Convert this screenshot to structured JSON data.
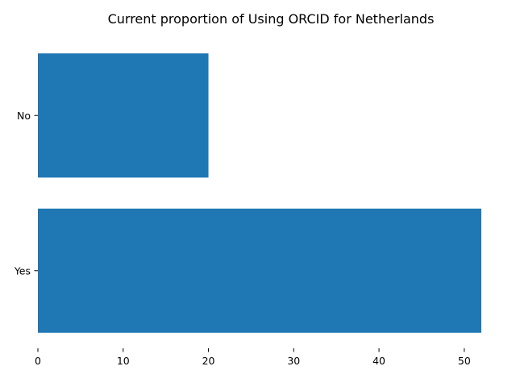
{
  "chart_data": {
    "type": "bar",
    "orientation": "horizontal",
    "title": "Current proportion of Using ORCID for Netherlands",
    "xlabel": "",
    "ylabel": "",
    "categories": [
      "Yes",
      "No"
    ],
    "values": [
      52,
      20
    ],
    "xlim": [
      0,
      52
    ],
    "xticks": [
      0,
      10,
      20,
      30,
      40,
      50
    ],
    "bar_color": "#1f77b4",
    "grid": false,
    "legend": "none"
  }
}
